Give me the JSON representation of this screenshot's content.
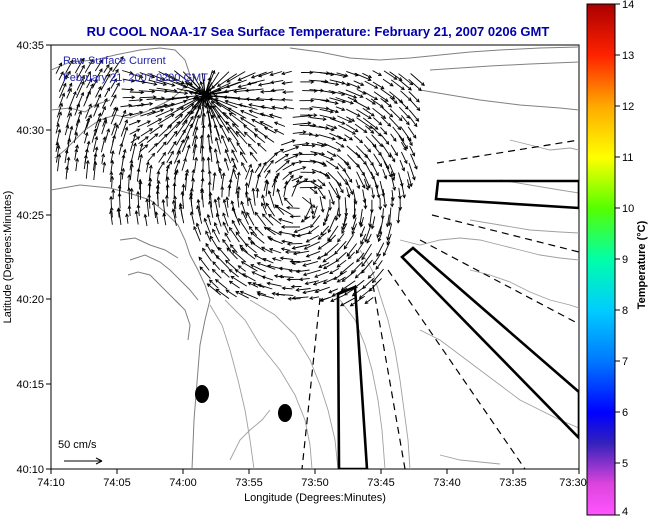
{
  "title": "RU COOL  NOAA-17  Sea Surface Temperature:  February 21, 2007 0206 GMT",
  "overlay": {
    "line1": "Raw Surface Current",
    "line2": "February 21, 2007 0200 GMT"
  },
  "axes": {
    "xlabel": "Longitude (Degrees:Minutes)",
    "ylabel": "Latitude (Degrees:Minutes)",
    "x_ticks": [
      "74:10",
      "74:05",
      "74:00",
      "73:55",
      "73:50",
      "73:45",
      "73:40",
      "73:35",
      "73:30"
    ],
    "y_ticks": [
      "40:35",
      "40:30",
      "40:25",
      "40:20",
      "40:15",
      "40:10"
    ]
  },
  "scale": {
    "label": "50 cm/s"
  },
  "colorbar": {
    "label": "Temperature (°C)",
    "ticks": [
      "14",
      "13",
      "12",
      "11",
      "10",
      "9",
      "8",
      "7",
      "6",
      "5",
      "4"
    ],
    "min": 4,
    "max": 14
  },
  "colors": {
    "title": "#0000aa",
    "overlay": "#2222aa",
    "land": "#7a7a7a",
    "bathymetry": "#9a9a9a",
    "arrows": "#000000"
  }
}
